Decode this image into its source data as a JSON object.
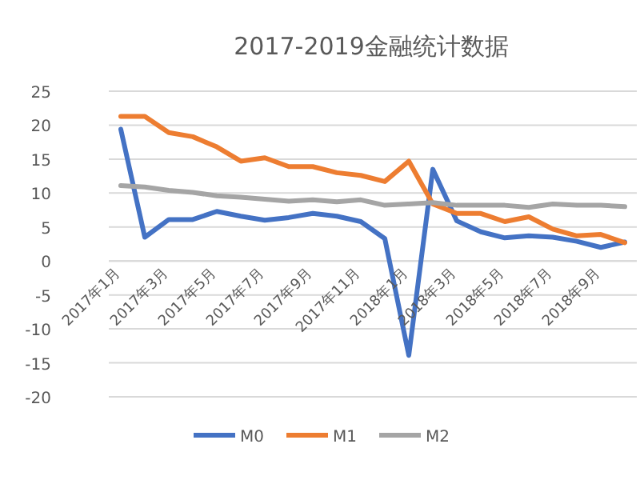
{
  "chart_data": {
    "type": "line",
    "title": "2017-2019金融统计数据",
    "categories": [
      "2017年1月",
      null,
      "2017年3月",
      null,
      "2017年5月",
      null,
      "2017年7月",
      null,
      "2017年9月",
      null,
      "2017年11月",
      null,
      "2018年1月",
      null,
      "2018年3月",
      null,
      "2018年5月",
      null,
      "2018年7月",
      null,
      "2018年9月",
      null
    ],
    "series": [
      {
        "name": "M0",
        "color": "#4472c4",
        "values": [
          19.4,
          3.5,
          6.1,
          6.1,
          7.3,
          6.6,
          6.0,
          6.4,
          7.0,
          6.6,
          5.8,
          3.3,
          -13.9,
          13.5,
          5.9,
          4.3,
          3.4,
          3.7,
          3.5,
          2.9,
          2.0,
          2.8
        ]
      },
      {
        "name": "M1",
        "color": "#ed7d31",
        "values": [
          21.3,
          21.3,
          18.9,
          18.3,
          16.8,
          14.7,
          15.2,
          13.9,
          13.9,
          13.0,
          12.6,
          11.7,
          14.7,
          8.4,
          7.0,
          7.0,
          5.8,
          6.5,
          4.7,
          3.7,
          3.9,
          2.7
        ]
      },
      {
        "name": "M2",
        "color": "#a5a5a5",
        "values": [
          11.1,
          10.9,
          10.4,
          10.1,
          9.6,
          9.4,
          9.1,
          8.8,
          9.0,
          8.7,
          9.0,
          8.2,
          8.4,
          8.6,
          8.2,
          8.2,
          8.2,
          7.9,
          8.4,
          8.2,
          8.2,
          8.0
        ]
      }
    ],
    "ylim": [
      -20,
      25
    ],
    "yticks": [
      -20,
      -15,
      -10,
      -5,
      0,
      5,
      10,
      15,
      20,
      25
    ],
    "grid": "y",
    "legend": "bottom",
    "marker": "none",
    "line_style": "solid"
  }
}
